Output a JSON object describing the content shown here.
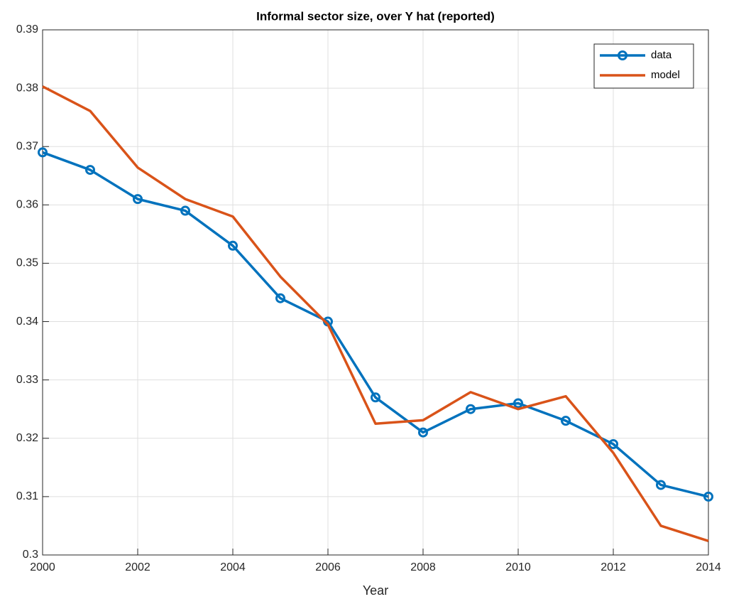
{
  "chart_data": {
    "type": "line",
    "title": "Informal sector size, over Y hat (reported)",
    "xlabel": "Year",
    "x": [
      2000,
      2001,
      2002,
      2003,
      2004,
      2005,
      2006,
      2007,
      2008,
      2009,
      2010,
      2011,
      2012,
      2013,
      2014
    ],
    "series": [
      {
        "name": "data",
        "color": "#0072bd",
        "marker": "circle",
        "values": [
          0.369,
          0.366,
          0.361,
          0.359,
          0.353,
          0.344,
          0.34,
          0.327,
          0.321,
          0.325,
          0.326,
          0.323,
          0.319,
          0.312,
          0.31
        ]
      },
      {
        "name": "model",
        "color": "#d95319",
        "marker": "none",
        "values": [
          0.3803,
          0.3761,
          0.3664,
          0.361,
          0.358,
          0.3477,
          0.3395,
          0.3225,
          0.3231,
          0.3279,
          0.325,
          0.3272,
          0.3175,
          0.305,
          0.3024
        ]
      }
    ],
    "xlim": [
      2000,
      2014
    ],
    "xticks": [
      2000,
      2002,
      2004,
      2006,
      2008,
      2010,
      2012,
      2014
    ],
    "ylim": [
      0.3,
      0.39
    ],
    "yticks": [
      0.3,
      0.31,
      0.32,
      0.33,
      0.34,
      0.35,
      0.36,
      0.37,
      0.38,
      0.39
    ],
    "grid": true,
    "legend": "northeast"
  }
}
